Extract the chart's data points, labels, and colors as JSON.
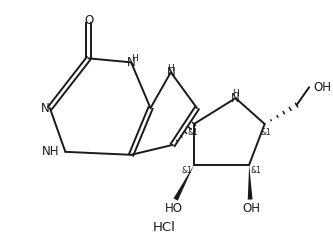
{
  "bg_color": "#ffffff",
  "line_color": "#1a1a1a",
  "line_width": 1.4,
  "font_size": 8.5,
  "small_font_size": 6.5,
  "stereo_font_size": 5.5,
  "hcl_label": "HCl",
  "figsize": [
    3.33,
    2.43
  ],
  "dpi": 100,
  "xlim": [
    0,
    10
  ],
  "ylim": [
    0,
    7.5
  ]
}
